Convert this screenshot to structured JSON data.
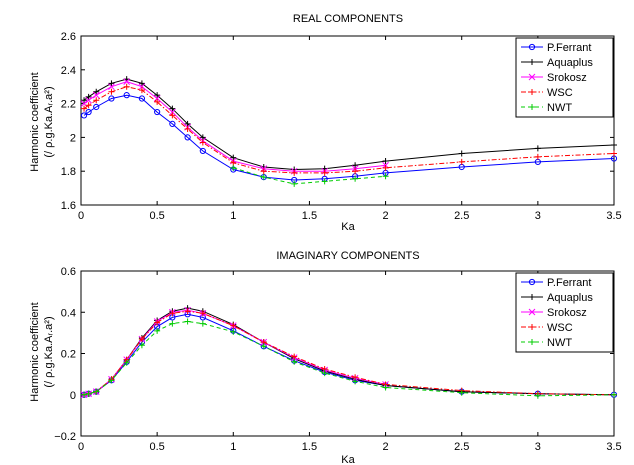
{
  "chart_data": [
    {
      "type": "line",
      "title": "REAL COMPONENTS",
      "xlabel": "Ka",
      "ylabel_line1": "Harmonic coefficient",
      "ylabel_line2": "(/ ρ.g.Ka.Aᵣ.a²)",
      "xlim": [
        0,
        3.5
      ],
      "ylim": [
        1.6,
        2.6
      ],
      "xticks": [
        "0",
        "0.5",
        "1",
        "1.5",
        "2",
        "2.5",
        "3",
        "3.5"
      ],
      "yticks": [
        "1.6",
        "1.8",
        "2",
        "2.2",
        "2.4",
        "2.6"
      ],
      "xtick_values": [
        0,
        0.5,
        1,
        1.5,
        2,
        2.5,
        3,
        3.5
      ],
      "ytick_values": [
        1.6,
        1.8,
        2.0,
        2.2,
        2.4,
        2.6
      ],
      "grid": false,
      "legend_position": "top-right",
      "series": [
        {
          "name": "P.Ferrant",
          "color": "#0000ff",
          "marker": "circle",
          "dash": "solid",
          "x": [
            0.02,
            0.05,
            0.1,
            0.2,
            0.3,
            0.4,
            0.5,
            0.6,
            0.7,
            0.8,
            1.0,
            1.2,
            1.4,
            1.6,
            1.8,
            2.0,
            2.5,
            3.0,
            3.5
          ],
          "y": [
            2.13,
            2.15,
            2.18,
            2.23,
            2.25,
            2.23,
            2.15,
            2.08,
            2.0,
            1.92,
            1.81,
            1.765,
            1.748,
            1.755,
            1.77,
            1.79,
            1.825,
            1.855,
            1.875
          ]
        },
        {
          "name": "Aquaplus",
          "color": "#000000",
          "marker": "plus",
          "dash": "solid",
          "x": [
            0.02,
            0.05,
            0.1,
            0.2,
            0.3,
            0.4,
            0.5,
            0.6,
            0.7,
            0.8,
            1.0,
            1.2,
            1.4,
            1.6,
            1.8,
            2.0,
            2.5,
            3.0,
            3.5
          ],
          "y": [
            2.22,
            2.24,
            2.27,
            2.32,
            2.345,
            2.32,
            2.25,
            2.17,
            2.08,
            2.0,
            1.88,
            1.825,
            1.81,
            1.815,
            1.835,
            1.86,
            1.905,
            1.935,
            1.955
          ]
        },
        {
          "name": "Srokosz",
          "color": "#ff00ff",
          "marker": "cross",
          "dash": "solid",
          "x": [
            0.02,
            0.05,
            0.1,
            0.2,
            0.3,
            0.4,
            0.5,
            0.6,
            0.7,
            0.8,
            1.0,
            1.2,
            1.4,
            1.6,
            1.8,
            2.0
          ],
          "y": [
            2.2,
            2.22,
            2.25,
            2.3,
            2.33,
            2.3,
            2.23,
            2.15,
            2.06,
            1.98,
            1.86,
            1.815,
            1.8,
            1.8,
            1.815,
            1.835
          ]
        },
        {
          "name": "WSC",
          "color": "#ff0000",
          "marker": "plus",
          "dash": "dashdot",
          "x": [
            0.02,
            0.05,
            0.1,
            0.2,
            0.3,
            0.4,
            0.5,
            0.6,
            0.7,
            0.8,
            1.0,
            1.2,
            1.4,
            1.6,
            1.8,
            2.0,
            2.5,
            3.0,
            3.5
          ],
          "y": [
            2.17,
            2.19,
            2.22,
            2.27,
            2.3,
            2.28,
            2.21,
            2.13,
            2.05,
            1.97,
            1.85,
            1.8,
            1.79,
            1.79,
            1.8,
            1.82,
            1.855,
            1.885,
            1.905
          ]
        },
        {
          "name": "NWT",
          "color": "#00cc00",
          "marker": "plus",
          "dash": "dashed",
          "x": [
            1.0,
            1.2,
            1.4,
            1.6,
            1.8,
            2.0
          ],
          "y": [
            1.82,
            1.765,
            1.725,
            1.74,
            1.755,
            1.77
          ]
        }
      ]
    },
    {
      "type": "line",
      "title": "IMAGINARY COMPONENTS",
      "xlabel": "Ka",
      "ylabel_line1": "Harmonic coefficient",
      "ylabel_line2": "(/ ρ.g.Ka.Aᵣ.a²)",
      "xlim": [
        0,
        3.5
      ],
      "ylim": [
        -0.2,
        0.6
      ],
      "xticks": [
        "0",
        "0.5",
        "1",
        "1.5",
        "2",
        "2.5",
        "3",
        "3.5"
      ],
      "yticks": [
        "−0.2",
        "0",
        "0.2",
        "0.4",
        "0.6"
      ],
      "xtick_values": [
        0,
        0.5,
        1,
        1.5,
        2,
        2.5,
        3,
        3.5
      ],
      "ytick_values": [
        -0.2,
        0,
        0.2,
        0.4,
        0.6
      ],
      "grid": false,
      "legend_position": "top-right",
      "series": [
        {
          "name": "P.Ferrant",
          "color": "#0000ff",
          "marker": "circle",
          "dash": "solid",
          "x": [
            0.02,
            0.05,
            0.1,
            0.2,
            0.3,
            0.4,
            0.5,
            0.6,
            0.7,
            0.8,
            1.0,
            1.2,
            1.4,
            1.6,
            1.8,
            2.0,
            2.5,
            3.0,
            3.5
          ],
          "y": [
            0.0,
            0.005,
            0.015,
            0.07,
            0.16,
            0.255,
            0.33,
            0.375,
            0.39,
            0.375,
            0.31,
            0.235,
            0.165,
            0.11,
            0.07,
            0.045,
            0.015,
            0.005,
            0.0
          ]
        },
        {
          "name": "Aquaplus",
          "color": "#000000",
          "marker": "plus",
          "dash": "solid",
          "x": [
            0.02,
            0.05,
            0.1,
            0.2,
            0.3,
            0.4,
            0.5,
            0.6,
            0.7,
            0.8,
            1.0,
            1.2,
            1.4,
            1.6,
            1.8,
            2.0,
            2.5,
            3.0,
            3.5
          ],
          "y": [
            0.0,
            0.005,
            0.015,
            0.075,
            0.17,
            0.275,
            0.36,
            0.405,
            0.42,
            0.405,
            0.34,
            0.255,
            0.175,
            0.115,
            0.075,
            0.045,
            0.015,
            0.005,
            0.0
          ]
        },
        {
          "name": "Srokosz",
          "color": "#ff00ff",
          "marker": "cross",
          "dash": "solid",
          "x": [
            0.02,
            0.05,
            0.1,
            0.2,
            0.3,
            0.4,
            0.5,
            0.6,
            0.7,
            0.8,
            1.0,
            1.2,
            1.4,
            1.6,
            1.8,
            2.0
          ],
          "y": [
            0.0,
            0.005,
            0.015,
            0.075,
            0.17,
            0.27,
            0.355,
            0.4,
            0.41,
            0.395,
            0.335,
            0.255,
            0.18,
            0.12,
            0.08,
            0.05
          ]
        },
        {
          "name": "WSC",
          "color": "#ff0000",
          "marker": "plus",
          "dash": "dashdot",
          "x": [
            0.02,
            0.05,
            0.1,
            0.2,
            0.3,
            0.4,
            0.5,
            0.6,
            0.7,
            0.8,
            1.0,
            1.2,
            1.4,
            1.6,
            1.8,
            2.0,
            2.5,
            3.0,
            3.5
          ],
          "y": [
            0.0,
            0.005,
            0.015,
            0.075,
            0.17,
            0.27,
            0.35,
            0.395,
            0.405,
            0.395,
            0.335,
            0.255,
            0.185,
            0.125,
            0.085,
            0.05,
            0.02,
            0.005,
            0.0
          ]
        },
        {
          "name": "NWT",
          "color": "#00cc00",
          "marker": "plus",
          "dash": "dashed",
          "x": [
            0.02,
            0.05,
            0.1,
            0.2,
            0.3,
            0.4,
            0.5,
            0.6,
            0.7,
            0.8,
            1.0,
            1.2,
            1.4,
            1.6,
            1.8,
            2.0,
            2.5,
            3.0,
            3.5
          ],
          "y": [
            0.0,
            0.005,
            0.015,
            0.07,
            0.155,
            0.24,
            0.31,
            0.345,
            0.355,
            0.345,
            0.305,
            0.235,
            0.16,
            0.105,
            0.065,
            0.035,
            0.01,
            -0.005,
            0.0
          ]
        }
      ]
    }
  ]
}
